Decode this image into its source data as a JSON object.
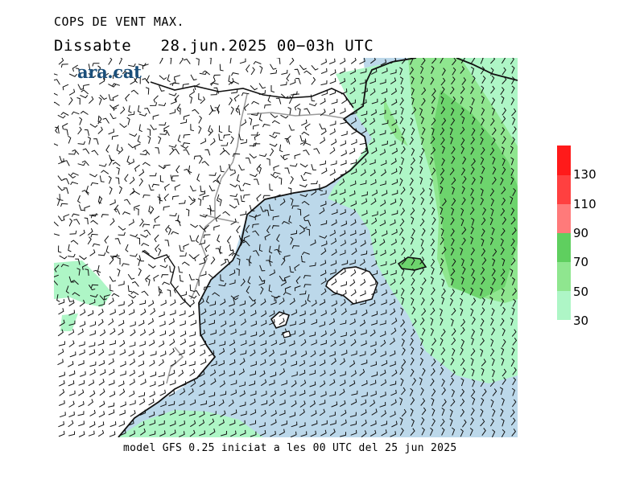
{
  "title": "COPS DE VENT MAX.",
  "subtitle": {
    "day": "Dissabte",
    "date": "28.jun.2025",
    "hours": "00−03h UTC"
  },
  "logo": "ara.cat",
  "footer": "model GFS 0.25 iniciat a les 00 UTC del 25 jun 2025",
  "legend": {
    "labels": [
      "130",
      "110",
      "90",
      "70",
      "50",
      "30"
    ],
    "colors": [
      "#ff1a1a",
      "#ff4040",
      "#ff7a7a",
      "#5fcf5f",
      "#8fe68f",
      "#aef6c6"
    ]
  },
  "colors": {
    "sea": "#bcd8ea",
    "land": "#ffffff",
    "band_30": "#aef6c6",
    "band_50": "#8fe68f",
    "band_70": "#6dd46d"
  }
}
